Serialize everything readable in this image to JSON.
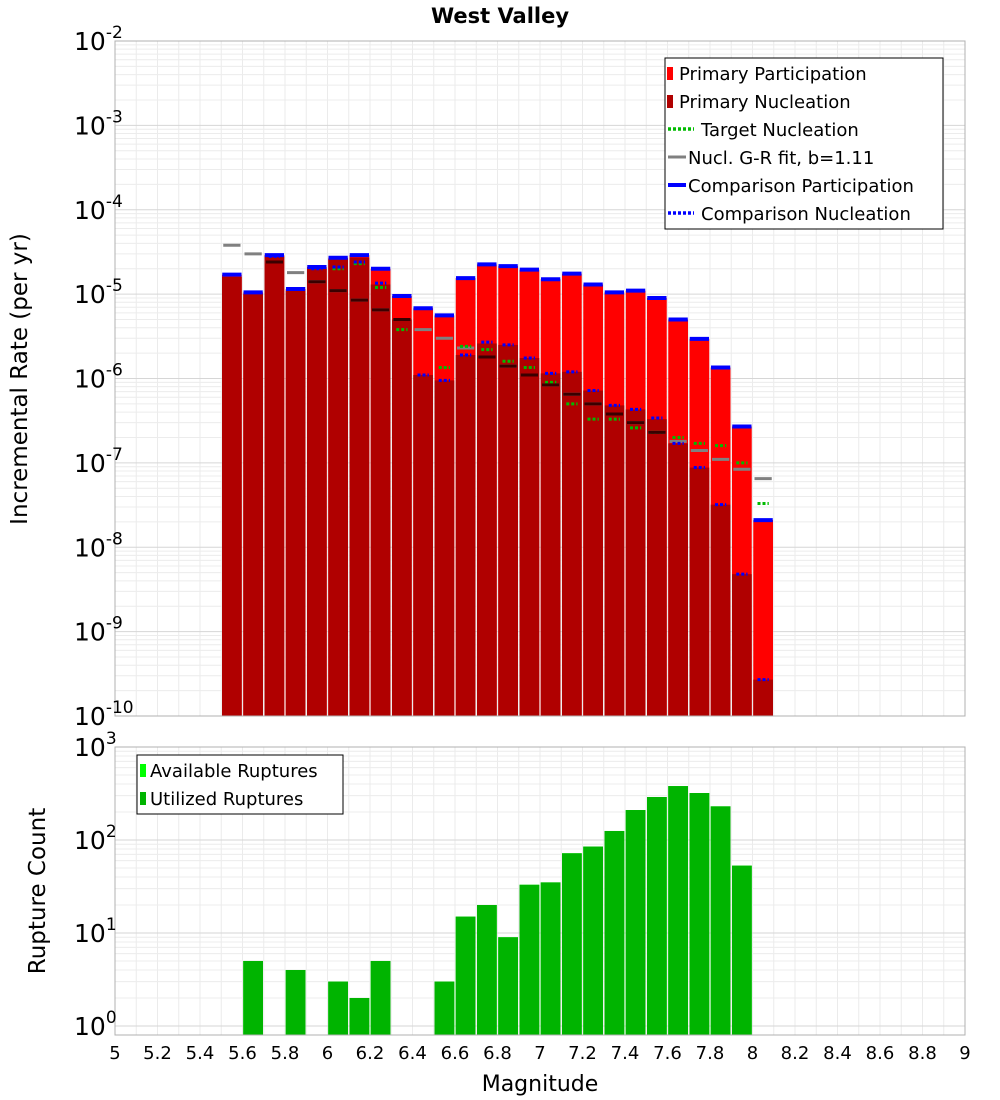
{
  "chart_data": [
    {
      "type": "bar",
      "title": "West Valley",
      "ylabel": "Incremental Rate (per yr)",
      "yscale": "log",
      "ylim": [
        1e-10,
        0.01
      ],
      "xlim": [
        5,
        9
      ],
      "y_tick_exponents": [
        "-10",
        "-9",
        "-8",
        "-7",
        "-6",
        "-5",
        "-4",
        "-3",
        "-2"
      ],
      "grid": true,
      "legend_position": "top-right",
      "x": [
        5.55,
        5.65,
        5.75,
        5.85,
        5.95,
        6.05,
        6.15,
        6.25,
        6.35,
        6.45,
        6.55,
        6.65,
        6.75,
        6.85,
        6.95,
        7.05,
        7.15,
        7.25,
        7.35,
        7.45,
        7.55,
        7.65,
        7.75,
        7.85,
        7.95,
        8.05
      ],
      "series": [
        {
          "name": "Primary Participation",
          "kind": "bar",
          "color": "#ff0000",
          "values": [
            1.7e-05,
            1.05e-05,
            2.9e-05,
            1.15e-05,
            2.1e-05,
            2.7e-05,
            2.9e-05,
            2e-05,
            9.5e-06,
            6.8e-06,
            5.6e-06,
            1.55e-05,
            2.25e-05,
            2.15e-05,
            1.95e-05,
            1.5e-05,
            1.75e-05,
            1.3e-05,
            1.05e-05,
            1.1e-05,
            9e-06,
            5e-06,
            2.95e-06,
            1.35e-06,
            2.7e-07,
            2.1e-08
          ]
        },
        {
          "name": "Primary Nucleation",
          "kind": "bar",
          "color": "#b00000",
          "values": [
            1.6e-05,
            1e-05,
            2.8e-05,
            1.1e-05,
            2e-05,
            2.6e-05,
            2.7e-05,
            1.3e-05,
            5e-06,
            1.1e-06,
            9.5e-07,
            1.9e-06,
            2.6e-06,
            2.5e-06,
            1.75e-06,
            1.15e-06,
            1.2e-06,
            7.2e-07,
            4.8e-07,
            4.3e-07,
            3.3e-07,
            1.7e-07,
            8.8e-08,
            3.2e-08,
            4.8e-09,
            2.7e-10
          ]
        },
        {
          "name": "Target Nucleation",
          "kind": "level",
          "style": "dotted",
          "color": "#00bb00",
          "values": [
            null,
            null,
            null,
            null,
            null,
            2e-05,
            2.3e-05,
            1.2e-05,
            3.8e-06,
            null,
            1.35e-06,
            2.4e-06,
            2.2e-06,
            1.6e-06,
            1.35e-06,
            9e-07,
            5e-07,
            3.3e-07,
            3.3e-07,
            2.6e-07,
            2.3e-07,
            2e-07,
            1.7e-07,
            1.6e-07,
            1e-07,
            3.3e-08
          ]
        },
        {
          "name": "Nucl. G-R fit, b=1.11",
          "kind": "level",
          "style": "solid",
          "color": "#808080",
          "values": [
            3.8e-05,
            3e-05,
            2.4e-05,
            1.8e-05,
            1.4e-05,
            1.1e-05,
            8.5e-06,
            6.5e-06,
            5e-06,
            3.8e-06,
            3e-06,
            2.3e-06,
            1.8e-06,
            1.4e-06,
            1.1e-06,
            8.4e-07,
            6.5e-07,
            5e-07,
            3.8e-07,
            3e-07,
            2.3e-07,
            1.8e-07,
            1.4e-07,
            1.1e-07,
            8.4e-08,
            6.5e-08
          ]
        },
        {
          "name": "Comparison Participation",
          "kind": "level",
          "style": "solid",
          "color": "#0000ff",
          "values": [
            1.7e-05,
            1.05e-05,
            2.9e-05,
            1.15e-05,
            2.1e-05,
            2.7e-05,
            2.9e-05,
            2e-05,
            9.5e-06,
            6.8e-06,
            5.6e-06,
            1.55e-05,
            2.25e-05,
            2.15e-05,
            1.95e-05,
            1.5e-05,
            1.75e-05,
            1.3e-05,
            1.05e-05,
            1.1e-05,
            9e-06,
            5e-06,
            2.95e-06,
            1.35e-06,
            2.7e-07,
            2.1e-08
          ]
        },
        {
          "name": "Comparison Nucleation",
          "kind": "level",
          "style": "dotted",
          "color": "#0000ff",
          "values": [
            null,
            null,
            2.8e-05,
            null,
            2e-05,
            2.1e-05,
            2.4e-05,
            1.35e-05,
            5e-06,
            1.1e-06,
            9.5e-07,
            1.9e-06,
            2.7e-06,
            2.5e-06,
            1.75e-06,
            1.15e-06,
            1.2e-06,
            7.2e-07,
            4.8e-07,
            4.3e-07,
            3.4e-07,
            1.7e-07,
            8.8e-08,
            3.2e-08,
            4.8e-09,
            2.7e-10
          ]
        }
      ]
    },
    {
      "type": "bar",
      "xlabel": "Magnitude",
      "ylabel": "Rupture Count",
      "yscale": "log",
      "ylim": [
        0.8,
        1000
      ],
      "xlim": [
        5,
        9
      ],
      "y_tick_exponents": [
        "0",
        "1",
        "2",
        "3"
      ],
      "x_ticks": [
        "5",
        "5.2",
        "5.4",
        "5.6",
        "5.8",
        "6",
        "6.2",
        "6.4",
        "6.6",
        "6.8",
        "7",
        "7.2",
        "7.4",
        "7.6",
        "7.8",
        "8",
        "8.2",
        "8.4",
        "8.6",
        "8.8",
        "9"
      ],
      "grid": true,
      "legend_position": "top-left",
      "x": [
        5.65,
        5.85,
        6.05,
        6.15,
        6.25,
        6.55,
        6.65,
        6.75,
        6.85,
        6.95,
        7.05,
        7.15,
        7.25,
        7.35,
        7.45,
        7.55,
        7.65,
        7.75,
        7.85,
        7.95
      ],
      "series": [
        {
          "name": "Available Ruptures",
          "color": "#00ff00",
          "values": [
            5,
            4,
            3,
            2,
            5,
            3,
            15,
            20,
            9,
            33,
            35,
            72,
            85,
            125,
            210,
            290,
            380,
            320,
            230,
            53
          ]
        },
        {
          "name": "Utilized Ruptures",
          "color": "#00b400",
          "values": [
            5,
            4,
            3,
            2,
            5,
            3,
            15,
            20,
            9,
            33,
            35,
            72,
            85,
            125,
            210,
            290,
            380,
            320,
            230,
            53
          ]
        }
      ]
    }
  ]
}
